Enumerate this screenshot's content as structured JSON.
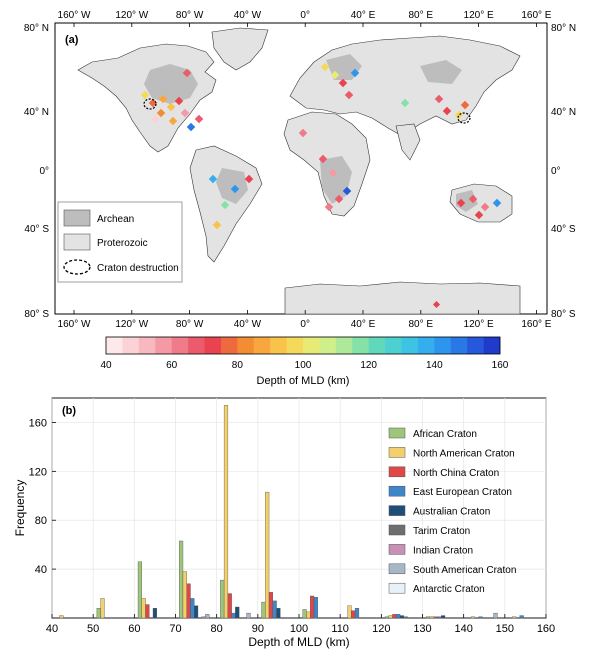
{
  "map": {
    "panel_label": "(a)",
    "lon_ticks_top": [
      "160° W",
      "120° W",
      "80° W",
      "40° W",
      "0°",
      "40° E",
      "80° E",
      "120° E",
      "160° E"
    ],
    "lon_ticks_bottom": [
      "160° W",
      "120° W",
      "80° W",
      "40° W",
      "0°",
      "40° E",
      "80° E",
      "120° E",
      "160° E"
    ],
    "lat_ticks": [
      "80° N",
      "40° N",
      "0°",
      "40° S",
      "80° S"
    ],
    "legend": {
      "archean": "Archean",
      "proterozoic": "Proterozoic",
      "craton_destruction": "Craton destruction"
    },
    "colors": {
      "archean": "#bdbdbd",
      "proterozoic": "#e3e3e3",
      "coast": "#333333"
    }
  },
  "colorbar": {
    "label": "Depth of MLD (km)",
    "ticks": [
      "40",
      "60",
      "80",
      "100",
      "120",
      "140",
      "160"
    ],
    "min": 40,
    "max": 160,
    "colors": [
      "#fde8ea",
      "#fbd3d7",
      "#f8b8bf",
      "#f49aa5",
      "#f07b89",
      "#ec5b6b",
      "#e8434f",
      "#ee6a3e",
      "#f38d33",
      "#f7a73d",
      "#f9c24a",
      "#f4d95a",
      "#e7ea75",
      "#d0ef8a",
      "#aee99a",
      "#86e1a9",
      "#61d8bb",
      "#4dd0d0",
      "#3fc3e4",
      "#35aef0",
      "#2e95ee",
      "#2a78e6",
      "#2558da",
      "#1f3bcc"
    ]
  },
  "chart_data": {
    "type": "bar",
    "panel_label": "(b)",
    "xlabel": "Depth of MLD (km)",
    "ylabel": "Frequency",
    "xlim": [
      40,
      160
    ],
    "ylim": [
      0,
      180
    ],
    "xticks": [
      "40",
      "50",
      "60",
      "70",
      "80",
      "90",
      "100",
      "110",
      "120",
      "130",
      "140",
      "150",
      "160"
    ],
    "yticks": [
      "40",
      "80",
      "120",
      "160"
    ],
    "bin_centers": [
      45,
      55,
      65,
      75,
      85,
      95,
      105,
      115,
      125,
      135,
      145,
      155
    ],
    "series": [
      {
        "name": "African Craton",
        "color": "#9dc67a",
        "values": [
          0,
          8,
          46,
          63,
          31,
          13,
          7,
          0,
          1,
          1,
          0,
          0
        ]
      },
      {
        "name": "North American Craton",
        "color": "#f4d06d",
        "values": [
          2,
          16,
          16,
          38,
          174,
          103,
          5,
          10,
          2,
          1,
          1,
          1
        ]
      },
      {
        "name": "North China Craton",
        "color": "#e04848",
        "values": [
          0,
          0,
          11,
          28,
          20,
          21,
          18,
          6,
          3,
          1,
          0,
          0
        ]
      },
      {
        "name": "East European Craton",
        "color": "#3f86c8",
        "values": [
          0,
          0,
          0,
          16,
          4,
          14,
          17,
          8,
          3,
          1,
          1,
          2
        ]
      },
      {
        "name": "Australian Craton",
        "color": "#1f4e79",
        "values": [
          0,
          0,
          8,
          10,
          9,
          8,
          0,
          0,
          2,
          2,
          0,
          0
        ]
      },
      {
        "name": "Tarim Craton",
        "color": "#6e6e6e",
        "values": [
          0,
          0,
          0,
          0,
          0,
          0,
          0,
          0,
          1,
          0,
          0,
          0
        ]
      },
      {
        "name": "Indian Craton",
        "color": "#c890b4",
        "values": [
          0,
          0,
          0,
          1,
          0,
          0,
          0,
          0,
          0,
          0,
          0,
          0
        ]
      },
      {
        "name": "South American Craton",
        "color": "#a8b6c6",
        "values": [
          0,
          0,
          0,
          3,
          4,
          0,
          0,
          0,
          0,
          0,
          4,
          0
        ]
      },
      {
        "name": "Antarctic Craton",
        "color": "#e8f0f8",
        "values": [
          0,
          0,
          0,
          0,
          0,
          0,
          0,
          0,
          0,
          0,
          0,
          0
        ]
      }
    ],
    "legend_position": "top-right",
    "grid": true
  }
}
